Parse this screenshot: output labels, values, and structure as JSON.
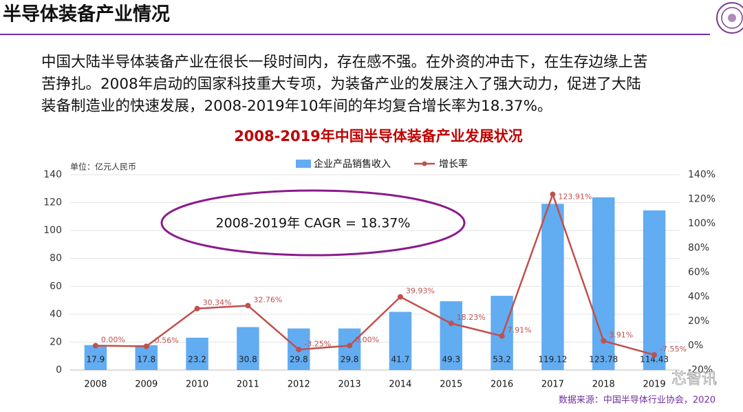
{
  "slide_title": "半导体装备产业情况",
  "paragraph_lines": [
    "中国大陆半导体装备产业在很长一段时间内，存在感不强。在外资的冲击下，在生存边缘上苦",
    "苦挣扎。2008年启动的国家科技重大专项，为装备产业的发展注入了强大动力，促进了大陆",
    "装备制造业的快速发展，2008-2019年10年间的年均复合增长率为18.37%。"
  ],
  "chart_data": {
    "type": "bar-line",
    "title": "2008-2019年中国半导体装备产业发展状况",
    "unit_label": "单位：亿元人民币",
    "annotation": "2008-2019年 CAGR = 18.37%",
    "source": "数据来源：中国半导体行业协会，2020",
    "watermark": "芯智讯",
    "categories": [
      "2008",
      "2009",
      "2010",
      "2011",
      "2012",
      "2013",
      "2014",
      "2015",
      "2016",
      "2017",
      "2018",
      "2019"
    ],
    "series": [
      {
        "name": "企业产品销售收入",
        "type": "bar",
        "color": "#62acf2",
        "values": [
          17.9,
          17.8,
          23.2,
          30.8,
          29.8,
          29.8,
          41.7,
          49.3,
          53.2,
          119.12,
          123.78,
          114.43
        ]
      },
      {
        "name": "增长率",
        "type": "line",
        "axis": "y2",
        "color": "#c0504d",
        "values": [
          0,
          -0.56,
          30.34,
          32.76,
          -3.25,
          0,
          39.93,
          18.23,
          7.91,
          123.91,
          3.91,
          -7.55
        ],
        "value_labels": [
          "0.00%",
          "-0.56%",
          "30.34%",
          "32.76%",
          "-3.25%",
          "0.00%",
          "39.93%",
          "18.23%",
          "7.91%",
          "123.91%",
          "3.91%",
          "-7.55%"
        ]
      }
    ],
    "ylim": [
      0,
      140
    ],
    "yticks": [
      0,
      20,
      40,
      60,
      80,
      100,
      120,
      140
    ],
    "y2lim": [
      -20,
      140
    ],
    "y2ticks": [
      {
        "value": -20,
        "label": "-20%"
      },
      {
        "value": 0,
        "label": "0%"
      },
      {
        "value": 20,
        "label": "20%"
      },
      {
        "value": 40,
        "label": "40%"
      },
      {
        "value": 60,
        "label": "60%"
      },
      {
        "value": 80,
        "label": "80%"
      },
      {
        "value": 100,
        "label": "100%"
      },
      {
        "value": 120,
        "label": "120%"
      },
      {
        "value": 140,
        "label": "140%"
      }
    ],
    "grid": true
  }
}
